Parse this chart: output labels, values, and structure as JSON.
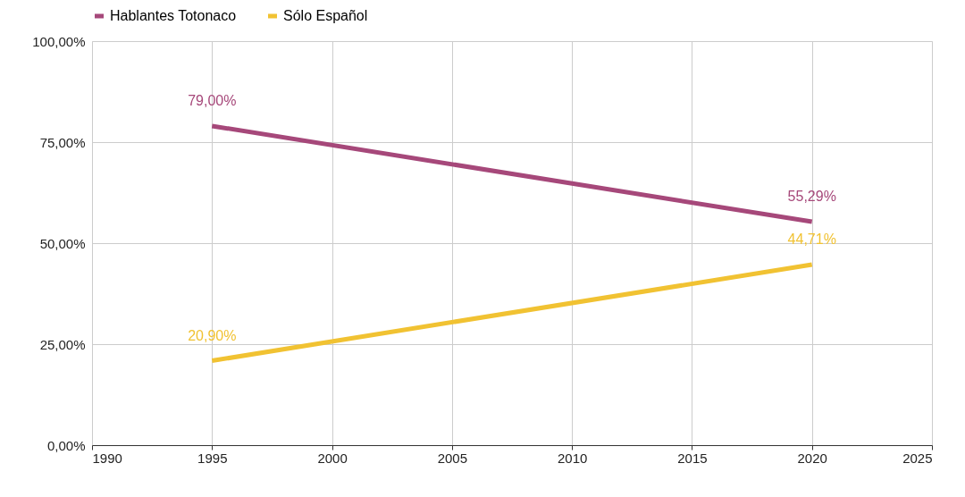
{
  "chart_data": {
    "type": "line",
    "x": [
      1995,
      2020
    ],
    "series": [
      {
        "name": "Hablantes Totonaco",
        "color": "#a6487a",
        "values": [
          79.0,
          55.29
        ],
        "value_labels": [
          "79,00%",
          "55,29%"
        ]
      },
      {
        "name": "Sólo Español",
        "color": "#f1c232",
        "values": [
          20.9,
          44.71
        ],
        "value_labels": [
          "20,90%",
          "44,71%"
        ]
      }
    ],
    "xlim": [
      1990,
      2025
    ],
    "xticks": [
      1990,
      1995,
      2000,
      2005,
      2010,
      2015,
      2020,
      2025
    ],
    "ylim": [
      0,
      100
    ],
    "yticks": [
      {
        "value": 0,
        "label": "0,00%"
      },
      {
        "value": 25,
        "label": "25,00%"
      },
      {
        "value": 50,
        "label": "50,00%"
      },
      {
        "value": 75,
        "label": "75,00%"
      },
      {
        "value": 100,
        "label": "100,00%"
      }
    ],
    "grid": true,
    "legend": "top",
    "marker": "none",
    "line_style": "solid"
  }
}
